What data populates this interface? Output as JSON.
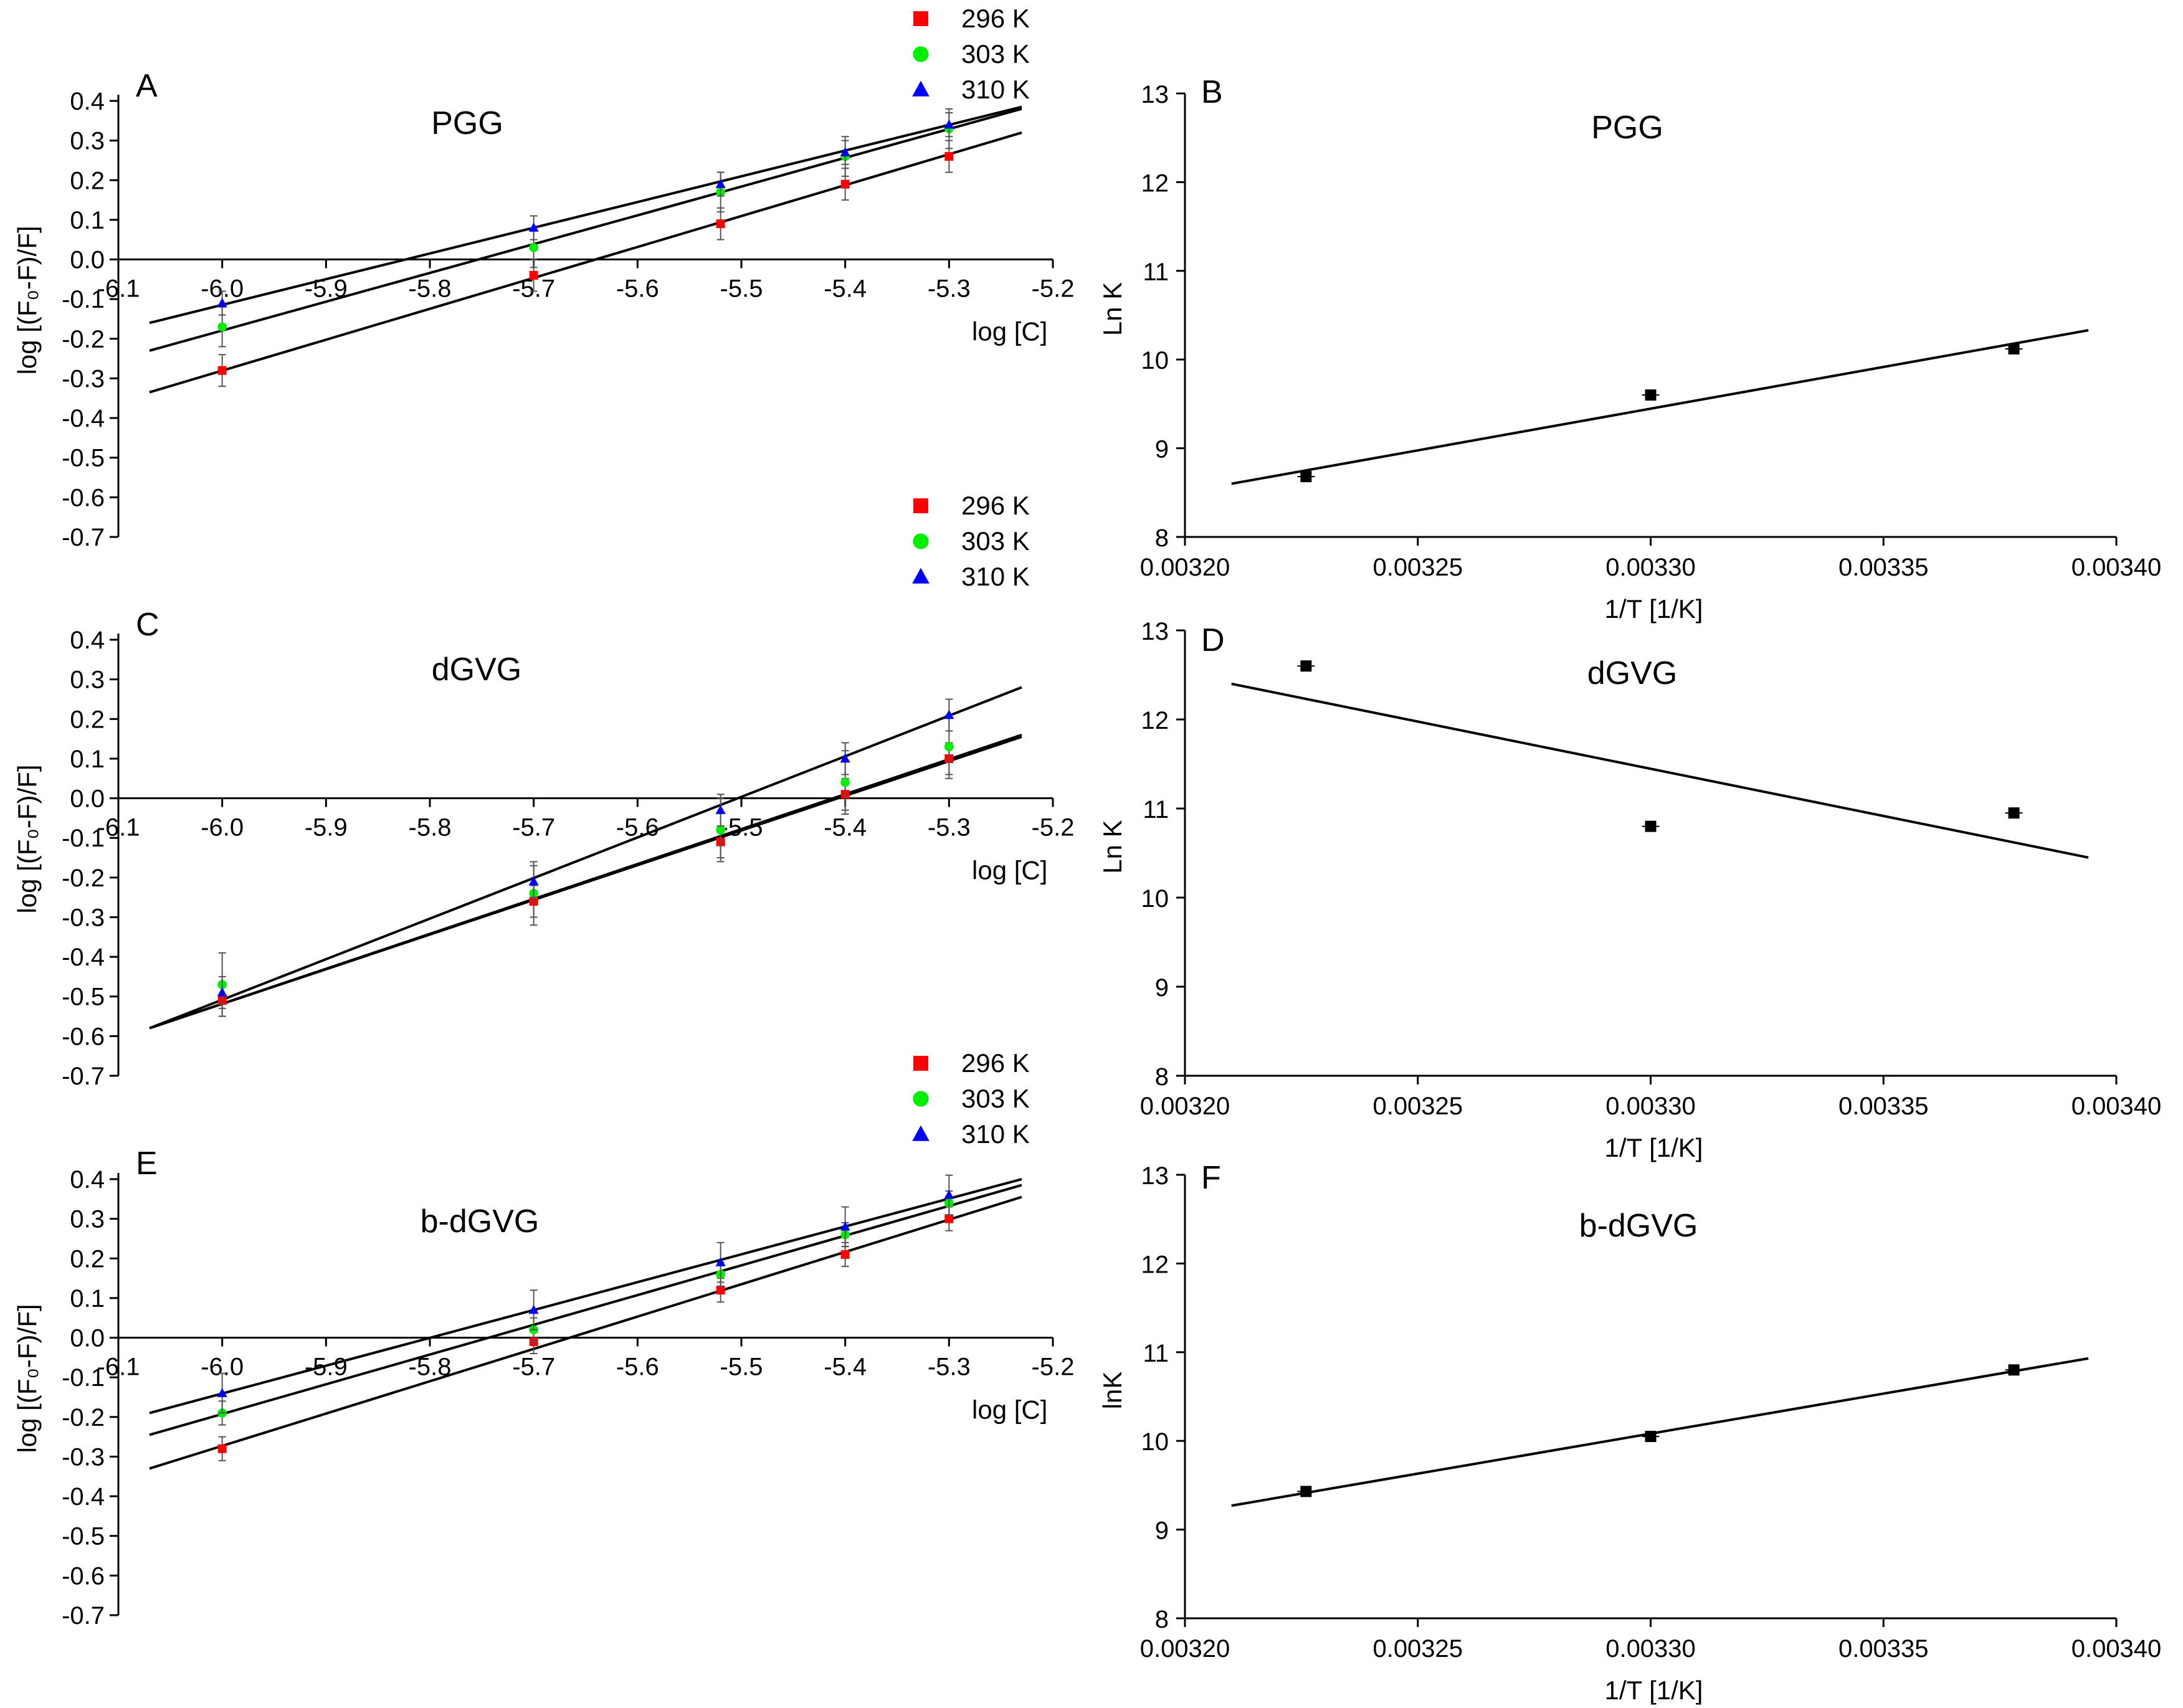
{
  "colors": {
    "t296": "#ff0000",
    "t303": "#00ee00",
    "t310": "#0000ff",
    "line": "#000000"
  },
  "legend": [
    {
      "label": "296 K",
      "marker": "square",
      "color": "#ff0000"
    },
    {
      "label": "303 K",
      "marker": "circle",
      "color": "#00ee00"
    },
    {
      "label": "310 K",
      "marker": "triangle",
      "color": "#0000ff"
    }
  ],
  "chart_data": [
    {
      "id": "A",
      "type": "scatter",
      "title": "PGG",
      "xlabel": "log [C]",
      "ylabel": "log [(F₀-F)/F]",
      "xlim": [
        -6.1,
        -5.2
      ],
      "ylim": [
        -0.7,
        0.4
      ],
      "xticks": [
        "-6.1",
        "-6.0",
        "-5.9",
        "-5.8",
        "-5.7",
        "-5.6",
        "-5.5",
        "-5.4",
        "-5.3",
        "-5.2"
      ],
      "yticks": [
        "-0.7",
        "-0.6",
        "-0.5",
        "-0.4",
        "-0.3",
        "-0.2",
        "-0.1",
        "0.0",
        "0.1",
        "0.2",
        "0.3",
        "0.4"
      ],
      "x": [
        -6.0,
        -5.7,
        -5.52,
        -5.4,
        -5.3
      ],
      "series": [
        {
          "name": "296 K",
          "values": [
            -0.28,
            -0.04,
            0.09,
            0.19,
            0.26
          ],
          "err": 0.04,
          "fit": [
            [
              -6.07,
              -0.335
            ],
            [
              -5.23,
              0.32
            ]
          ]
        },
        {
          "name": "303 K",
          "values": [
            -0.17,
            0.03,
            0.17,
            0.26,
            0.33
          ],
          "err": 0.05,
          "fit": [
            [
              -6.07,
              -0.23
            ],
            [
              -5.23,
              0.38
            ]
          ]
        },
        {
          "name": "310 K",
          "values": [
            -0.11,
            0.08,
            0.19,
            0.27,
            0.34
          ],
          "err": 0.03,
          "fit": [
            [
              -6.07,
              -0.16
            ],
            [
              -5.23,
              0.385
            ]
          ]
        }
      ]
    },
    {
      "id": "B",
      "type": "scatter",
      "title": "PGG",
      "xlabel": "1/T [1/K]",
      "ylabel": "Ln K",
      "xlim": [
        0.0032,
        0.0034
      ],
      "ylim": [
        8,
        13
      ],
      "xticks": [
        "0.00320",
        "0.00325",
        "0.00330",
        "0.00335",
        "0.00340"
      ],
      "yticks": [
        "8",
        "9",
        "10",
        "11",
        "12",
        "13"
      ],
      "points": [
        [
          0.003226,
          8.68
        ],
        [
          0.0033,
          9.6
        ],
        [
          0.003378,
          10.12
        ]
      ],
      "fit": [
        [
          0.00321,
          8.6
        ],
        [
          0.003394,
          10.33
        ]
      ]
    },
    {
      "id": "C",
      "type": "scatter",
      "title": "dGVG",
      "xlabel": "log [C]",
      "ylabel": "log [(F₀-F)/F]",
      "xlim": [
        -6.1,
        -5.2
      ],
      "ylim": [
        -0.7,
        0.4
      ],
      "xticks": [
        "-6.1",
        "-6.0",
        "-5.9",
        "-5.8",
        "-5.7",
        "-5.6",
        "-5.5",
        "-5.4",
        "-5.3",
        "-5.2"
      ],
      "yticks": [
        "-0.7",
        "-0.6",
        "-0.5",
        "-0.4",
        "-0.3",
        "-0.2",
        "-0.1",
        "0.0",
        "0.1",
        "0.2",
        "0.3",
        "0.4"
      ],
      "x": [
        -6.0,
        -5.7,
        -5.52,
        -5.4,
        -5.3
      ],
      "series": [
        {
          "name": "296 K",
          "values": [
            -0.51,
            -0.26,
            -0.11,
            0.01,
            0.1
          ],
          "err": 0.04,
          "fit": [
            [
              -6.07,
              -0.58
            ],
            [
              -5.23,
              0.155
            ]
          ]
        },
        {
          "name": "303 K",
          "values": [
            -0.47,
            -0.24,
            -0.08,
            0.04,
            0.13
          ],
          "err": 0.08,
          "fit": [
            [
              -6.07,
              -0.58
            ],
            [
              -5.23,
              0.16
            ]
          ]
        },
        {
          "name": "310 K",
          "values": [
            -0.49,
            -0.21,
            -0.03,
            0.1,
            0.21
          ],
          "err": 0.04,
          "fit": [
            [
              -6.07,
              -0.58
            ],
            [
              -5.23,
              0.28
            ]
          ]
        }
      ]
    },
    {
      "id": "D",
      "type": "scatter",
      "title": "dGVG",
      "xlabel": "1/T [1/K]",
      "ylabel": "Ln K",
      "xlim": [
        0.0032,
        0.0034
      ],
      "ylim": [
        8,
        13
      ],
      "xticks": [
        "0.00320",
        "0.00325",
        "0.00330",
        "0.00335",
        "0.00340"
      ],
      "yticks": [
        "8",
        "9",
        "10",
        "11",
        "12",
        "13"
      ],
      "points": [
        [
          0.003226,
          12.6
        ],
        [
          0.0033,
          10.8
        ],
        [
          0.003378,
          10.95
        ]
      ],
      "fit": [
        [
          0.00321,
          12.4
        ],
        [
          0.003394,
          10.45
        ]
      ]
    },
    {
      "id": "E",
      "type": "scatter",
      "title": "b-dGVG",
      "xlabel": "log [C]",
      "ylabel": "log [(F₀-F)/F]",
      "xlim": [
        -6.1,
        -5.2
      ],
      "ylim": [
        -0.7,
        0.4
      ],
      "xticks": [
        "-6.1",
        "-6.0",
        "-5.9",
        "-5.8",
        "-5.7",
        "-5.6",
        "-5.5",
        "-5.4",
        "-5.3",
        "-5.2"
      ],
      "yticks": [
        "-0.7",
        "-0.6",
        "-0.5",
        "-0.4",
        "-0.3",
        "-0.2",
        "-0.1",
        "0.0",
        "0.1",
        "0.2",
        "0.3",
        "0.4"
      ],
      "x": [
        -6.0,
        -5.7,
        -5.52,
        -5.4,
        -5.3
      ],
      "series": [
        {
          "name": "296 K",
          "values": [
            -0.28,
            -0.01,
            0.12,
            0.21,
            0.3
          ],
          "err": 0.03,
          "fit": [
            [
              -6.07,
              -0.33
            ],
            [
              -5.23,
              0.355
            ]
          ]
        },
        {
          "name": "303 K",
          "values": [
            -0.19,
            0.02,
            0.16,
            0.26,
            0.34
          ],
          "err": 0.03,
          "fit": [
            [
              -6.07,
              -0.245
            ],
            [
              -5.23,
              0.385
            ]
          ]
        },
        {
          "name": "310 K",
          "values": [
            -0.14,
            0.07,
            0.19,
            0.28,
            0.36
          ],
          "err": 0.05,
          "fit": [
            [
              -6.07,
              -0.19
            ],
            [
              -5.23,
              0.4
            ]
          ]
        }
      ]
    },
    {
      "id": "F",
      "type": "scatter",
      "title": "b-dGVG",
      "xlabel": "1/T [1/K]",
      "ylabel": "lnK",
      "xlim": [
        0.0032,
        0.0034
      ],
      "ylim": [
        8,
        13
      ],
      "xticks": [
        "0.00320",
        "0.00325",
        "0.00330",
        "0.00335",
        "0.00340"
      ],
      "yticks": [
        "8",
        "9",
        "10",
        "11",
        "12",
        "13"
      ],
      "points": [
        [
          0.003226,
          9.43
        ],
        [
          0.0033,
          10.05
        ],
        [
          0.003378,
          10.8
        ]
      ],
      "fit": [
        [
          0.00321,
          9.27
        ],
        [
          0.003394,
          10.93
        ]
      ]
    }
  ]
}
